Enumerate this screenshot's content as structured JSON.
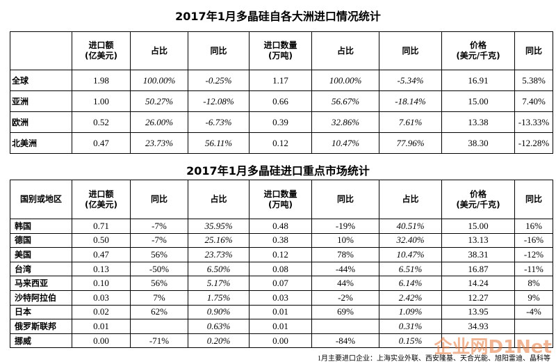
{
  "tables": [
    {
      "title": "2017年1月多晶硅自各大洲进口情况统计",
      "header": [
        "",
        "进口额\n(亿美元)",
        "占比",
        "同比",
        "进口数量\n(万吨)",
        "占比",
        "同比",
        "价格\n(美元/千克)",
        "同比"
      ],
      "rows": [
        [
          "全球",
          "1.98",
          "100.00%",
          "-0.25%",
          "1.17",
          "100.00%",
          "-5.34%",
          "16.91",
          "5.38%"
        ],
        [
          "亚洲",
          "1.00",
          "50.27%",
          "-12.08%",
          "0.66",
          "56.67%",
          "-18.14%",
          "15.00",
          "7.40%"
        ],
        [
          "欧洲",
          "0.52",
          "26.00%",
          "-6.73%",
          "0.39",
          "32.86%",
          "7.61%",
          "13.38",
          "-13.33%"
        ],
        [
          "北美洲",
          "0.47",
          "23.73%",
          "56.11%",
          "0.12",
          "10.47%",
          "77.96%",
          "38.30",
          "-12.28%"
        ]
      ]
    },
    {
      "title": "2017年1月多晶硅进口重点市场统计",
      "header": [
        "国别或地区",
        "进口额\n(亿美元)",
        "同比",
        "占比",
        "进口数量\n(万吨)",
        "同比",
        "占比",
        "价格\n(美元/千克)",
        "同比"
      ],
      "rows": [
        [
          "韩国",
          "0.71",
          "-7%",
          "35.95%",
          "0.48",
          "-19%",
          "40.51%",
          "15.00",
          "16%"
        ],
        [
          "德国",
          "0.50",
          "-7%",
          "25.16%",
          "0.38",
          "10%",
          "32.40%",
          "13.13",
          "-16%"
        ],
        [
          "美国",
          "0.47",
          "56%",
          "23.73%",
          "0.12",
          "78%",
          "10.47%",
          "38.31",
          "-12%"
        ],
        [
          "台湾",
          "0.13",
          "-50%",
          "6.50%",
          "0.08",
          "-44%",
          "6.51%",
          "16.87",
          "-11%"
        ],
        [
          "马来西亚",
          "0.10",
          "56%",
          "5.17%",
          "0.07",
          "44%",
          "6.14%",
          "14.24",
          "8%"
        ],
        [
          "沙特阿拉伯",
          "0.03",
          "7%",
          "1.75%",
          "0.03",
          "-2%",
          "2.42%",
          "12.27",
          "9%"
        ],
        [
          "日本",
          "0.02",
          "62%",
          "0.90%",
          "0.01",
          "69%",
          "1.09%",
          "13.95",
          "-4%"
        ],
        [
          "俄罗斯联邦",
          "0.01",
          null,
          "0.63%",
          "0.01",
          null,
          "0.31%",
          "34.93",
          null
        ],
        [
          "挪威",
          "0.00",
          "-71%",
          "0.20%",
          "0.00",
          "-84%",
          "0.15%",
          null,
          null
        ]
      ]
    }
  ],
  "footer": "1月主要进口企业：上海实业外联、西安隆基、天合光能、旭阳雷迪、晶科等",
  "watermark": "企业网D1Net"
}
